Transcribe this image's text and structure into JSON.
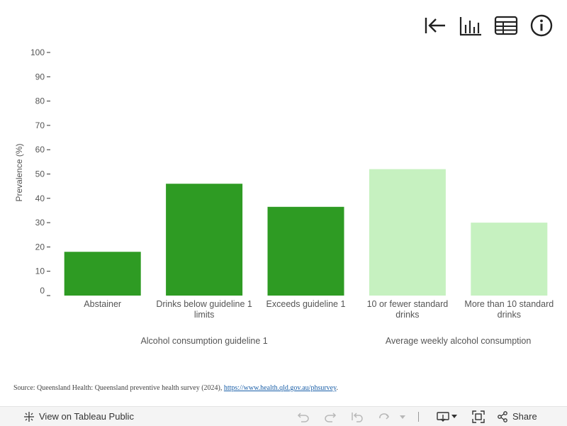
{
  "icons": {
    "revert": "revert-icon",
    "chart_view": "bar-chart-icon",
    "table_view": "table-icon",
    "info": "info-icon"
  },
  "chart_data": {
    "type": "bar",
    "ylabel": "Prevalence (%)",
    "ylim": [
      0,
      100
    ],
    "yticks": [
      0,
      10,
      20,
      30,
      40,
      50,
      60,
      70,
      80,
      90,
      100
    ],
    "grid": false,
    "categories": [
      [
        "Abstainer"
      ],
      [
        "Drinks below guideline 1",
        "limits"
      ],
      [
        "Exceeds guideline 1"
      ],
      [
        "10 or fewer standard",
        "drinks"
      ],
      [
        "More than 10 standard",
        "drinks"
      ]
    ],
    "values": [
      18,
      46,
      36.5,
      52,
      30
    ],
    "colors": [
      "#2e9b23",
      "#2e9b23",
      "#2e9b23",
      "#c6f1c0",
      "#c6f1c0"
    ],
    "groups": [
      {
        "label": "Alcohol consumption guideline 1",
        "start": 0,
        "end": 2
      },
      {
        "label": "Average weekly alcohol consumption",
        "start": 3,
        "end": 4
      }
    ]
  },
  "source": {
    "text": "Source: Queensland Health: Queensland preventive health survey (2024), ",
    "link": "https://www.health.qld.gov.au/phsurvey",
    "suffix": "."
  },
  "footer": {
    "view_label": "View on Tableau Public",
    "share_label": "Share"
  }
}
